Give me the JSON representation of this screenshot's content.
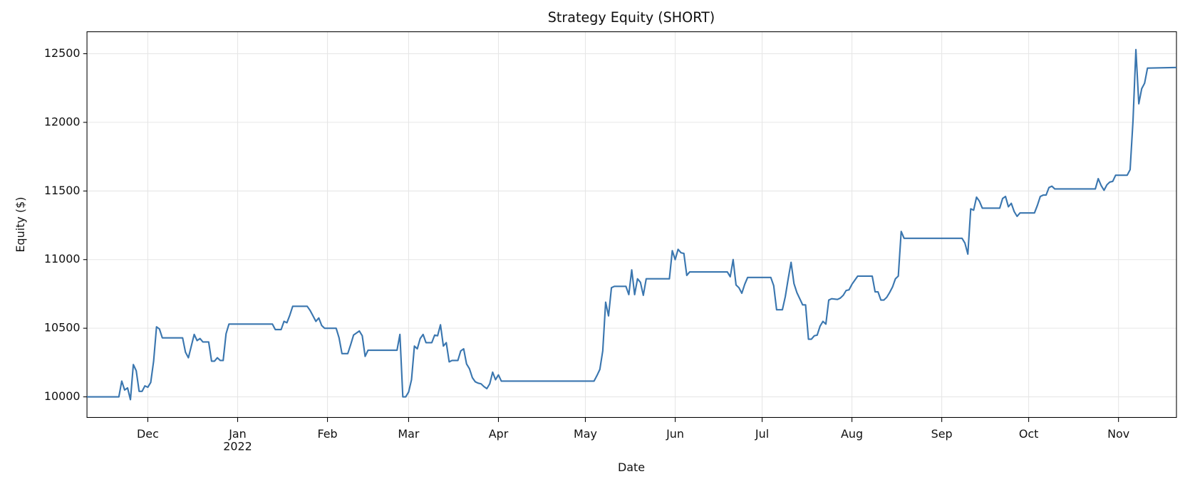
{
  "chart_data": {
    "type": "line",
    "title": "Strategy Equity (SHORT)",
    "x_label": "Date",
    "y_label": "Equity ($)",
    "xlim": [
      0,
      376
    ],
    "ylim": [
      9850,
      12660
    ],
    "xticks": [
      {
        "value": 21,
        "label": "Dec"
      },
      {
        "value": 52,
        "label": "Jan\n2022"
      },
      {
        "value": 83,
        "label": "Feb"
      },
      {
        "value": 111,
        "label": "Mar"
      },
      {
        "value": 142,
        "label": "Apr"
      },
      {
        "value": 172,
        "label": "May"
      },
      {
        "value": 203,
        "label": "Jun"
      },
      {
        "value": 233,
        "label": "Jul"
      },
      {
        "value": 264,
        "label": "Aug"
      },
      {
        "value": 295,
        "label": "Sep"
      },
      {
        "value": 325,
        "label": "Oct"
      },
      {
        "value": 356,
        "label": "Nov"
      }
    ],
    "yticks": [
      10000,
      10500,
      11000,
      11500,
      12000,
      12500
    ],
    "grid": true,
    "series": [
      {
        "name": "Equity",
        "color": "#3a76af",
        "x": [
          0,
          11,
          12,
          13,
          14,
          15,
          16,
          17,
          18,
          19,
          20,
          21,
          22,
          23,
          24,
          25,
          26,
          33,
          34,
          35,
          36,
          37,
          38,
          39,
          40,
          42,
          43,
          44,
          45,
          46,
          47,
          48,
          49,
          64,
          65,
          67,
          68,
          69,
          70,
          71,
          76,
          77,
          78,
          79,
          80,
          81,
          82,
          86,
          87,
          88,
          90,
          91,
          92,
          94,
          95,
          96,
          97,
          107,
          108,
          109,
          110,
          111,
          112,
          113,
          114,
          115,
          116,
          117,
          119,
          120,
          121,
          122,
          123,
          124,
          125,
          126,
          128,
          129,
          130,
          131,
          132,
          133,
          134,
          135,
          136,
          137,
          138,
          139,
          140,
          141,
          142,
          143,
          175,
          176,
          177,
          178,
          179,
          180,
          181,
          182,
          186,
          187,
          188,
          189,
          190,
          191,
          192,
          193,
          201,
          202,
          203,
          204,
          205,
          206,
          207,
          208,
          221,
          222,
          223,
          224,
          225,
          226,
          227,
          228,
          236,
          237,
          238,
          240,
          241,
          242,
          243,
          244,
          245,
          246,
          247,
          248,
          249,
          250,
          251,
          252,
          253,
          254,
          255,
          256,
          257,
          259,
          260,
          261,
          262,
          263,
          264,
          265,
          266,
          271,
          272,
          273,
          274,
          275,
          276,
          277,
          278,
          279,
          280,
          281,
          282,
          302,
          303,
          304,
          305,
          306,
          307,
          308,
          309,
          315,
          316,
          317,
          318,
          319,
          320,
          321,
          322,
          327,
          328,
          329,
          330,
          331,
          332,
          333,
          334,
          348,
          349,
          350,
          351,
          352,
          353,
          354,
          355,
          359,
          360,
          361,
          362,
          363,
          364,
          365,
          366,
          376
        ],
        "values": [
          10000,
          10000,
          10115,
          10050,
          10065,
          9980,
          10235,
          10190,
          10040,
          10040,
          10080,
          10070,
          10105,
          10260,
          10510,
          10495,
          10430,
          10430,
          10325,
          10285,
          10370,
          10455,
          10410,
          10425,
          10400,
          10400,
          10260,
          10260,
          10285,
          10265,
          10265,
          10460,
          10530,
          10530,
          10490,
          10490,
          10550,
          10540,
          10595,
          10660,
          10660,
          10630,
          10590,
          10550,
          10575,
          10520,
          10500,
          10500,
          10430,
          10315,
          10315,
          10380,
          10450,
          10480,
          10445,
          10295,
          10340,
          10340,
          10455,
          10000,
          10000,
          10035,
          10125,
          10370,
          10350,
          10425,
          10455,
          10395,
          10395,
          10450,
          10445,
          10525,
          10370,
          10395,
          10255,
          10265,
          10265,
          10335,
          10350,
          10240,
          10205,
          10140,
          10110,
          10100,
          10095,
          10075,
          10060,
          10095,
          10180,
          10125,
          10160,
          10115,
          10115,
          10155,
          10200,
          10335,
          10690,
          10590,
          10795,
          10805,
          10805,
          10745,
          10925,
          10745,
          10860,
          10835,
          10740,
          10860,
          10860,
          11065,
          11000,
          11075,
          11050,
          11045,
          10885,
          10910,
          10910,
          10875,
          11000,
          10815,
          10795,
          10755,
          10820,
          10870,
          10870,
          10810,
          10635,
          10635,
          10730,
          10860,
          10980,
          10825,
          10760,
          10715,
          10670,
          10670,
          10420,
          10420,
          10445,
          10450,
          10515,
          10550,
          10530,
          10705,
          10715,
          10710,
          10720,
          10740,
          10775,
          10780,
          10820,
          10850,
          10880,
          10880,
          10765,
          10765,
          10705,
          10705,
          10725,
          10760,
          10800,
          10860,
          10880,
          11205,
          11155,
          11155,
          11120,
          11040,
          11370,
          11360,
          11455,
          11425,
          11375,
          11375,
          11445,
          11460,
          11385,
          11410,
          11350,
          11315,
          11340,
          11340,
          11395,
          11460,
          11470,
          11470,
          11525,
          11535,
          11515,
          11515,
          11590,
          11540,
          11505,
          11545,
          11565,
          11570,
          11615,
          11615,
          11655,
          12010,
          12530,
          12135,
          12245,
          12285,
          12395,
          12400
        ]
      }
    ]
  }
}
